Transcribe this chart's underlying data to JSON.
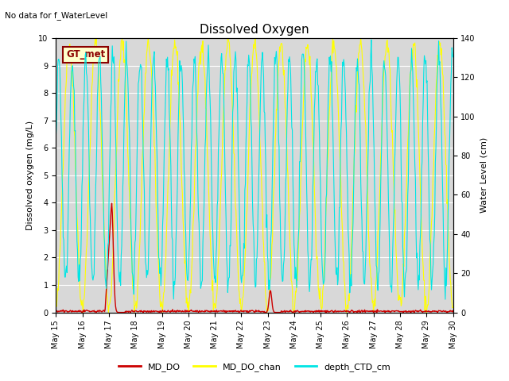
{
  "title": "Dissolved Oxygen",
  "top_left_text": "No data for f_WaterLevel",
  "ylabel_left": "Dissolved oxygen (mg/L)",
  "ylabel_right": "Water Level (cm)",
  "ylim_left": [
    0.0,
    10.0
  ],
  "ylim_right": [
    0,
    140
  ],
  "yticks_left": [
    0.0,
    1.0,
    2.0,
    3.0,
    4.0,
    5.0,
    6.0,
    7.0,
    8.0,
    9.0,
    10.0
  ],
  "yticks_right": [
    0,
    20,
    40,
    60,
    80,
    100,
    120,
    140
  ],
  "xstart_day": 15,
  "xend_day": 30,
  "xtick_days": [
    15,
    16,
    17,
    18,
    19,
    20,
    21,
    22,
    23,
    24,
    25,
    26,
    27,
    28,
    29,
    30
  ],
  "xtick_labels": [
    "May 15",
    "May 16",
    "May 17",
    "May 18",
    "May 19",
    "May 20",
    "May 21",
    "May 22",
    "May 23",
    "May 24",
    "May 25",
    "May 26",
    "May 27",
    "May 28",
    "May 29",
    "May 30"
  ],
  "color_MD_DO": "#cc0000",
  "color_MD_DO_chan": "#ffff00",
  "color_depth_CTD_cm": "#00e5e5",
  "background_color": "#d8d8d8",
  "gt_met_box_facecolor": "#ffffcc",
  "gt_met_box_edgecolor": "#8B0000",
  "gt_met_text_color": "#8B0000",
  "legend_labels": [
    "MD_DO",
    "MD_DO_chan",
    "depth_CTD_cm"
  ],
  "legend_colors": [
    "#cc0000",
    "#ffff00",
    "#00e5e5"
  ],
  "title_fontsize": 11,
  "tick_labelsize": 7,
  "axis_labelsize": 8
}
